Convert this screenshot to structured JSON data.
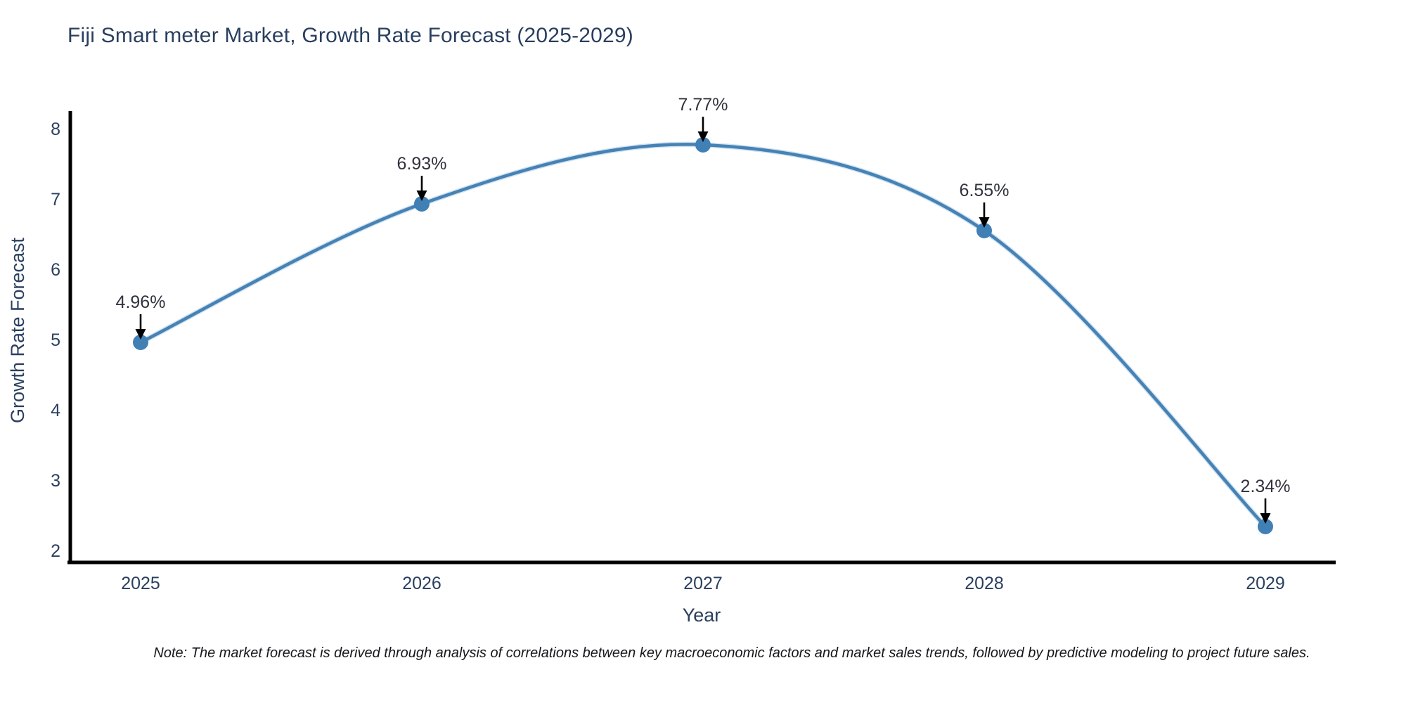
{
  "title": "Fiji Smart meter Market, Growth Rate Forecast (2025-2029)",
  "note": "Note: The market forecast is derived through analysis of correlations between key macroeconomic factors and market sales trends, followed by predictive modeling to project future sales.",
  "chart_data": {
    "type": "line",
    "line_shape": "spline",
    "x": [
      2025,
      2026,
      2027,
      2028,
      2029
    ],
    "values": [
      4.96,
      6.93,
      7.77,
      6.55,
      2.34
    ],
    "point_labels": [
      "4.96%",
      "6.93%",
      "7.77%",
      "6.55%",
      "2.34%"
    ],
    "title": "Fiji Smart meter Market, Growth Rate Forecast (2025-2029)",
    "xlabel": "Year",
    "ylabel": "Growth Rate Forecast",
    "ylim": [
      2,
      8
    ],
    "yticks": [
      2,
      3,
      4,
      5,
      6,
      7,
      8
    ],
    "xticks": [
      "2025",
      "2026",
      "2027",
      "2028",
      "2029"
    ],
    "grid": false,
    "legend_position": "none",
    "colors": {
      "line": "#4682b4",
      "line_halo": "#b9d4ec",
      "marker": "#4180b5",
      "axis_line": "#000000",
      "axis_text": "#2a3f5f",
      "annotation_text": "#30333d",
      "annotation_arrow": "#000000",
      "title_text": "#2a3f5f",
      "note_text": "#16171b"
    }
  }
}
